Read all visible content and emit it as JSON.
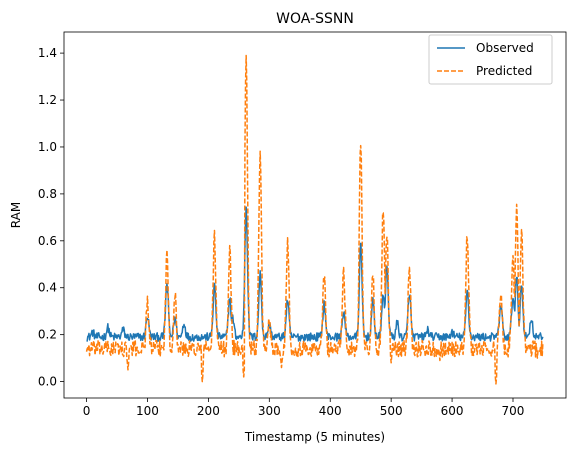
{
  "chart_data": {
    "type": "line",
    "title": "WOA-SSNN",
    "xlabel": "Timestamp (5 minutes)",
    "ylabel": "RAM",
    "xlim": [
      -37,
      787
    ],
    "ylim": [
      -0.07,
      1.49
    ],
    "x_ticks": [
      0,
      100,
      200,
      300,
      400,
      500,
      600,
      700
    ],
    "y_ticks": [
      0.0,
      0.2,
      0.4,
      0.6,
      0.8,
      1.0,
      1.2,
      1.4
    ],
    "x_tick_labels": [
      "0",
      "100",
      "200",
      "300",
      "400",
      "500",
      "600",
      "700"
    ],
    "y_tick_labels": [
      "0.0",
      "0.2",
      "0.4",
      "0.6",
      "0.8",
      "1.0",
      "1.2",
      "1.4"
    ],
    "grid": false,
    "legend_position": "top-right",
    "n_points": 750,
    "series": [
      {
        "name": "Observed",
        "color": "#1f77b4",
        "style": "solid",
        "baseline": 0.19,
        "noise": 0.018,
        "peaks": [
          [
            10,
            0.21
          ],
          [
            35,
            0.23
          ],
          [
            60,
            0.22
          ],
          [
            100,
            0.28
          ],
          [
            132,
            0.42
          ],
          [
            145,
            0.27
          ],
          [
            160,
            0.25
          ],
          [
            210,
            0.41
          ],
          [
            235,
            0.36
          ],
          [
            240,
            0.27
          ],
          [
            262,
            0.75
          ],
          [
            285,
            0.46
          ],
          [
            300,
            0.24
          ],
          [
            330,
            0.35
          ],
          [
            390,
            0.33
          ],
          [
            422,
            0.3
          ],
          [
            450,
            0.58
          ],
          [
            470,
            0.34
          ],
          [
            487,
            0.38
          ],
          [
            493,
            0.5
          ],
          [
            510,
            0.25
          ],
          [
            530,
            0.38
          ],
          [
            560,
            0.22
          ],
          [
            600,
            0.21
          ],
          [
            625,
            0.39
          ],
          [
            680,
            0.33
          ],
          [
            700,
            0.37
          ],
          [
            706,
            0.45
          ],
          [
            714,
            0.42
          ],
          [
            730,
            0.27
          ]
        ]
      },
      {
        "name": "Predicted",
        "color": "#ff7f0e",
        "style": "dashed",
        "baseline": 0.14,
        "noise": 0.035,
        "peaks": [
          [
            100,
            0.34
          ],
          [
            132,
            0.54
          ],
          [
            145,
            0.37
          ],
          [
            210,
            0.62
          ],
          [
            235,
            0.56
          ],
          [
            262,
            1.42
          ],
          [
            285,
            0.95
          ],
          [
            300,
            0.26
          ],
          [
            330,
            0.6
          ],
          [
            390,
            0.45
          ],
          [
            422,
            0.48
          ],
          [
            450,
            1.04
          ],
          [
            470,
            0.46
          ],
          [
            487,
            0.75
          ],
          [
            493,
            0.62
          ],
          [
            530,
            0.5
          ],
          [
            625,
            0.63
          ],
          [
            680,
            0.38
          ],
          [
            700,
            0.52
          ],
          [
            706,
            0.75
          ],
          [
            714,
            0.65
          ]
        ],
        "dips": [
          [
            68,
            0.05
          ],
          [
            190,
            0.0
          ],
          [
            258,
            0.02
          ],
          [
            320,
            0.06
          ],
          [
            500,
            0.08
          ],
          [
            580,
            0.09
          ],
          [
            672,
            -0.01
          ],
          [
            740,
            0.1
          ]
        ]
      }
    ]
  }
}
